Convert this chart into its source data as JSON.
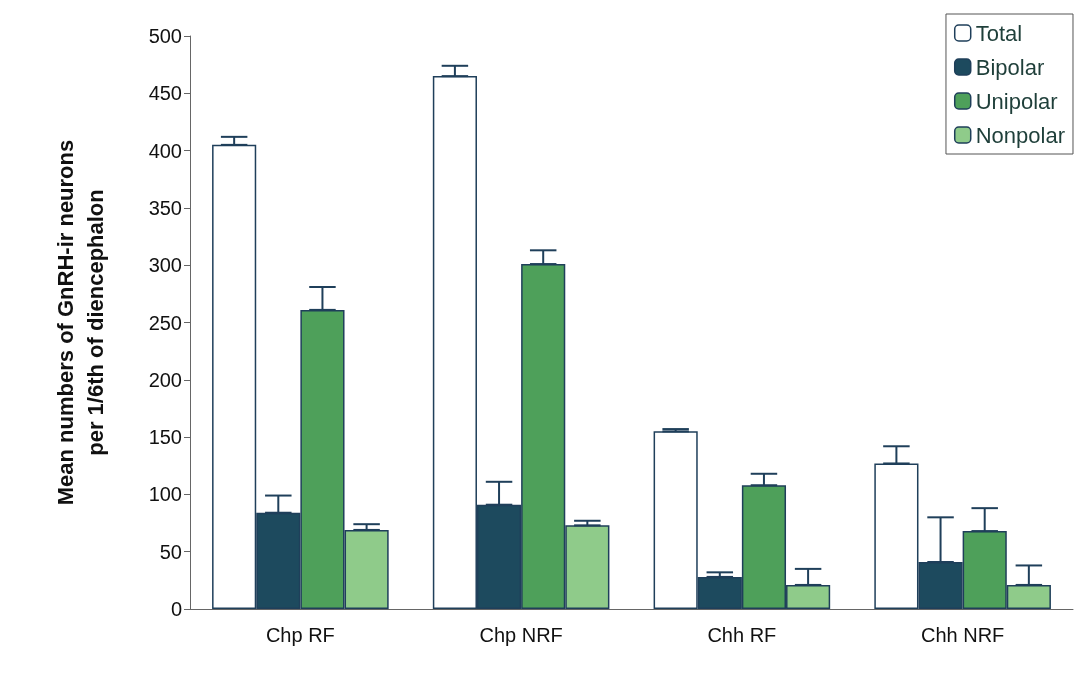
{
  "chart_data": {
    "type": "bar",
    "ylabel": "Mean numbers of GnRH-ir neurons\nper 1/6th of diencephalon",
    "categories": [
      "Chp RF",
      "Chp NRF",
      "Chh RF",
      "Chh NRF"
    ],
    "series": [
      {
        "name": "Total",
        "color": "#ffffff",
        "values": [
          405,
          465,
          155,
          127
        ],
        "errors": [
          [
            405,
            412
          ],
          [
            465,
            474
          ],
          [
            155,
            157
          ],
          [
            127,
            142
          ]
        ]
      },
      {
        "name": "Bipolar",
        "color": "#1d4a5e",
        "values": [
          84,
          91,
          28,
          41
        ],
        "errors": [
          [
            84,
            99
          ],
          [
            91,
            111
          ],
          [
            28,
            32
          ],
          [
            41,
            80
          ]
        ]
      },
      {
        "name": "Unipolar",
        "color": "#4ea05a",
        "values": [
          261,
          301,
          108,
          68
        ],
        "errors": [
          [
            261,
            281
          ],
          [
            301,
            313
          ],
          [
            108,
            118
          ],
          [
            68,
            88
          ]
        ]
      },
      {
        "name": "Nonpolar",
        "color": "#8fcb8a",
        "values": [
          69,
          73,
          21,
          21
        ],
        "errors": [
          [
            69,
            74
          ],
          [
            73,
            77
          ],
          [
            21,
            35
          ],
          [
            21,
            38
          ]
        ]
      }
    ],
    "ylim": [
      0,
      500
    ],
    "yticks": [
      0,
      50,
      100,
      150,
      200,
      250,
      300,
      350,
      400,
      450,
      500
    ],
    "grid": false,
    "legend": "top right"
  }
}
